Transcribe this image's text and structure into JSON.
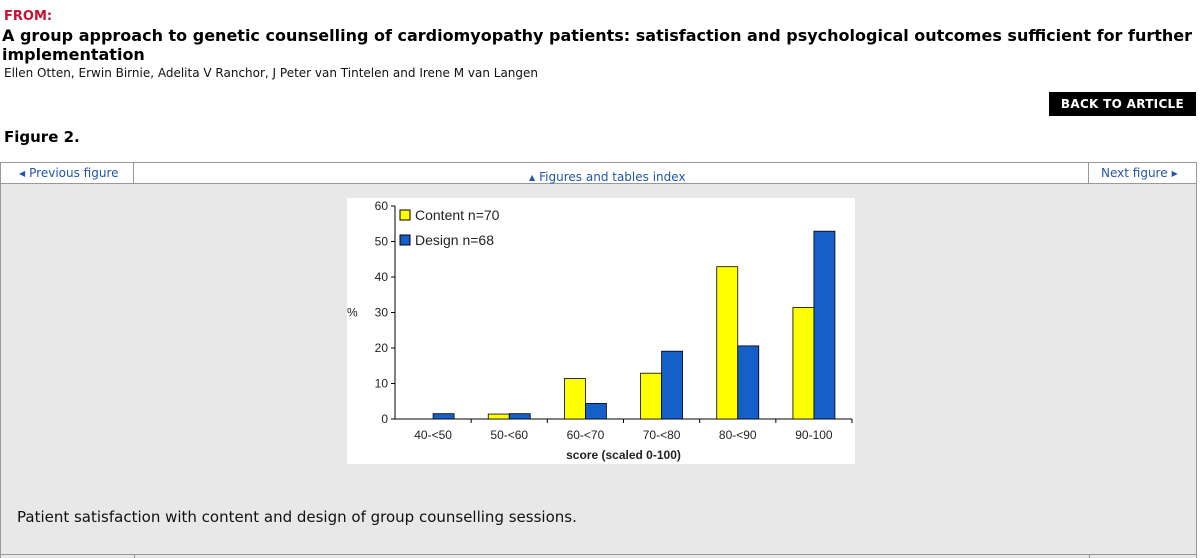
{
  "header": {
    "from_label": "FROM:",
    "title": "A group approach to genetic counselling of cardiomyopathy patients: satisfaction and psychological outcomes sufficient for further implementation",
    "authors": "Ellen Otten, Erwin Birnie, Adelita V Ranchor, J Peter van Tintelen and Irene M van Langen",
    "back_button": "BACK TO ARTICLE"
  },
  "figure": {
    "heading": "Figure 2.",
    "caption": "Patient satisfaction with content and design of group counselling sessions."
  },
  "nav": {
    "previous": "Previous figure",
    "index": "Figures and tables index",
    "next": "Next figure"
  },
  "colors": {
    "content_series": "#ffff00",
    "design_series": "#1560c8",
    "link": "#2255aa",
    "from_label": "#c8102e"
  },
  "chart_data": {
    "type": "bar",
    "categories": [
      "40-<50",
      "50-<60",
      "60-<70",
      "70-<80",
      "80-<90",
      "90-100"
    ],
    "series": [
      {
        "name": "Content n=70",
        "values": [
          0,
          1.4,
          11.4,
          12.9,
          42.9,
          31.4
        ]
      },
      {
        "name": "Design n=68",
        "values": [
          1.5,
          1.5,
          4.4,
          19.1,
          20.6,
          52.9
        ]
      }
    ],
    "xlabel": "score (scaled 0-100)",
    "ylabel": "%",
    "ylim": [
      0,
      60
    ],
    "yticks": [
      0,
      10,
      20,
      30,
      40,
      50,
      60
    ],
    "legend_position": "top-left",
    "grid": false
  }
}
